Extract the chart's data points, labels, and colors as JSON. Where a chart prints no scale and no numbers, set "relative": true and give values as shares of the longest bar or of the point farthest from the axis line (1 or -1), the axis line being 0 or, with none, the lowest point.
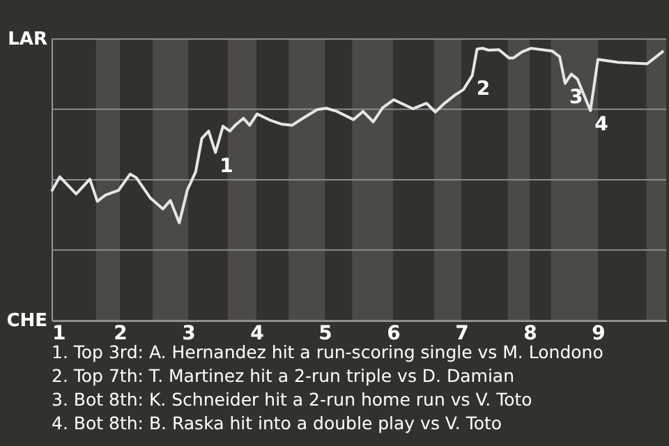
{
  "chart_data": {
    "type": "line",
    "x": [
      1.0,
      1.12,
      1.36,
      1.56,
      1.67,
      1.79,
      1.98,
      2.15,
      2.24,
      2.45,
      2.63,
      2.74,
      2.87,
      2.99,
      3.11,
      3.2,
      3.3,
      3.4,
      3.51,
      3.61,
      3.7,
      3.81,
      3.9,
      4.01,
      4.19,
      4.36,
      4.52,
      4.7,
      4.89,
      5.02,
      5.18,
      5.42,
      5.56,
      5.71,
      5.85,
      6.01,
      6.29,
      6.49,
      6.62,
      6.74,
      6.91,
      7.03,
      7.16,
      7.23,
      7.31,
      7.4,
      7.55,
      7.7,
      7.76,
      7.89,
      8.02,
      8.33,
      8.44,
      8.52,
      8.61,
      8.7,
      8.89,
      9.0,
      9.3,
      9.72,
      9.96
    ],
    "series": [
      {
        "color": "#e6e6e6",
        "values": [
          0.475,
          0.528,
          0.465,
          0.519,
          0.438,
          0.461,
          0.478,
          0.538,
          0.525,
          0.449,
          0.41,
          0.441,
          0.359,
          0.481,
          0.546,
          0.669,
          0.696,
          0.617,
          0.714,
          0.696,
          0.72,
          0.743,
          0.717,
          0.759,
          0.737,
          0.722,
          0.717,
          0.746,
          0.775,
          0.78,
          0.768,
          0.738,
          0.768,
          0.73,
          0.782,
          0.811,
          0.778,
          0.798,
          0.766,
          0.795,
          0.829,
          0.848,
          0.9,
          0.997,
          1,
          0.993,
          0.995,
          0.964,
          0.964,
          0.987,
          1,
          0.99,
          0.969,
          0.871,
          0.905,
          0.887,
          0.771,
          0.959,
          0.948,
          0.943,
          0.99
        ]
      }
    ],
    "relative": true,
    "xlim": [
      1,
      10
    ],
    "xticks": [
      1,
      2,
      3,
      4,
      5,
      6,
      7,
      8,
      9
    ],
    "ref_lines": [
      {
        "axis": "y",
        "value": 1.034,
        "label": "LAR",
        "color": "#8c8c8c"
      },
      {
        "axis": "y",
        "value": 0.776,
        "color": "#8c8c8c"
      },
      {
        "axis": "y",
        "value": 0.517,
        "color": "#8c8c8c"
      },
      {
        "axis": "y",
        "value": 0.259,
        "color": "#8c8c8c"
      },
      {
        "axis": "y",
        "value": 0,
        "label": "CHE",
        "color": "#8c8c8c"
      }
    ],
    "bands": [
      {
        "axis": "x",
        "from": 1.65,
        "to": 2,
        "color": "#4b4a47"
      },
      {
        "axis": "x",
        "from": 2.48,
        "to": 3,
        "color": "#4b4a47"
      },
      {
        "axis": "x",
        "from": 3.58,
        "to": 4,
        "color": "#4b4a47"
      },
      {
        "axis": "x",
        "from": 4.47,
        "to": 5,
        "color": "#4b4a47"
      },
      {
        "axis": "x",
        "from": 5.4,
        "to": 6,
        "color": "#4b4a47"
      },
      {
        "axis": "x",
        "from": 6.6,
        "to": 7,
        "color": "#4b4a47"
      },
      {
        "axis": "x",
        "from": 7.68,
        "to": 8,
        "color": "#4b4a47"
      },
      {
        "axis": "x",
        "from": 8.31,
        "to": 9,
        "color": "#4b4a47"
      },
      {
        "axis": "x",
        "from": 9.71,
        "to": 10,
        "color": "#4b4a47"
      }
    ],
    "annotations": [
      {
        "text": "1",
        "x": 3.4,
        "y": 0.617
      },
      {
        "text": "2",
        "x": 7.16,
        "y": 0.9
      },
      {
        "text": "3",
        "x": 8.52,
        "y": 0.871
      },
      {
        "text": "4",
        "x": 8.89,
        "y": 0.771
      },
      "1. Top 3rd: A. Hernandez hit a run-scoring single vs M. Londono",
      "2. Top 7th: T. Martinez hit a 2-run triple vs D. Damian",
      "3. Bot 8th: K. Schneider hit a 2-run home run vs V. Toto",
      "4. Bot 8th: B. Raska hit into a double play vs V. Toto"
    ],
    "marker": "none",
    "line_style": "solid"
  }
}
